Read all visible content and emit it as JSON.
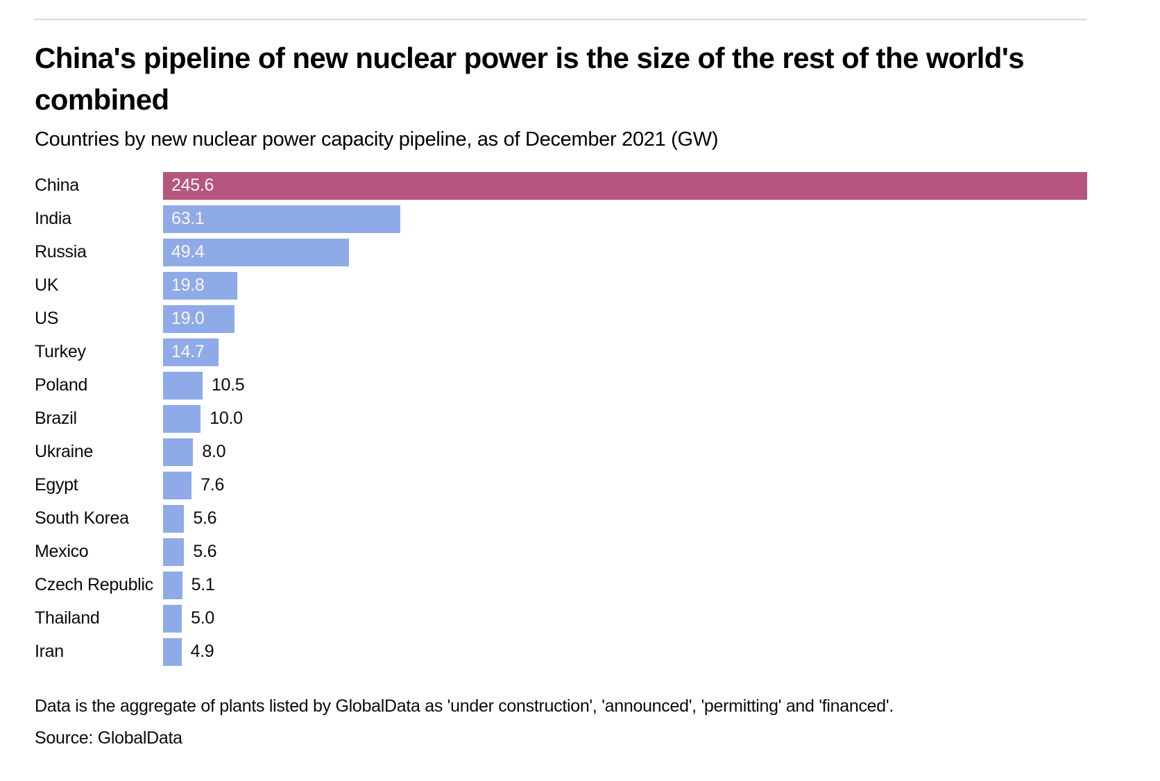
{
  "header": {
    "title": "China's pipeline of new nuclear power is the size of the rest of the world's combined",
    "subtitle": "Countries by new nuclear power capacity pipeline, as of December 2021 (GW)"
  },
  "chart_data": {
    "type": "bar",
    "orientation": "horizontal",
    "title": "China's pipeline of new nuclear power is the size of the rest of the world's combined",
    "subtitle": "Countries by new nuclear power capacity pipeline, as of December 2021 (GW)",
    "unit": "GW",
    "categories": [
      "China",
      "India",
      "Russia",
      "UK",
      "US",
      "Turkey",
      "Poland",
      "Brazil",
      "Ukraine",
      "Egypt",
      "South Korea",
      "Mexico",
      "Czech Republic",
      "Thailand",
      "Iran"
    ],
    "values": [
      245.6,
      63.1,
      49.4,
      19.8,
      19.0,
      14.7,
      10.5,
      10.0,
      8.0,
      7.6,
      5.6,
      5.6,
      5.1,
      5.0,
      4.9
    ],
    "value_labels": [
      "245.6",
      "63.1",
      "49.4",
      "19.8",
      "19.0",
      "14.7",
      "10.5",
      "10.0",
      "8.0",
      "7.6",
      "5.6",
      "5.6",
      "5.1",
      "5.0",
      "4.9"
    ],
    "highlight_category": "China",
    "xlim": [
      0,
      245.6
    ],
    "grid": false,
    "legend": false
  },
  "footer": {
    "note": "Data is the aggregate of plants listed by GlobalData as 'under construction', 'announced', 'permitting' and 'financed'.",
    "source": "Source: GlobalData"
  },
  "colors": {
    "highlight_bar": "#b6567f",
    "bar": "#8faae8",
    "rule": "#d8d8d8",
    "inside_value_text": "#faf7f8",
    "text": "#0a0a0a"
  }
}
